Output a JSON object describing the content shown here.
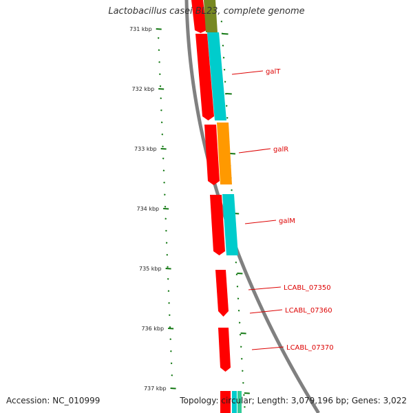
{
  "title": "Lactobacillus casei BL23, complete genome",
  "footer": {
    "accession": "Accession: NC_010999",
    "summary": "Topology: circular; Length: 3,079,196 bp; Genes: 3,022"
  },
  "colors": {
    "backbone": "#808080",
    "tick": "#117711",
    "cds_red": "#ff0000",
    "cds_cyan": "#00cccc",
    "cds_orange": "#ff9900",
    "cds_olive": "#778822",
    "label_red": "#dd0000"
  },
  "ticks": [
    {
      "label": "731 kbp"
    },
    {
      "label": "732 kbp"
    },
    {
      "label": "733 kbp"
    },
    {
      "label": "734 kbp"
    },
    {
      "label": "735 kbp"
    },
    {
      "label": "736 kbp"
    },
    {
      "label": "737 kbp"
    }
  ],
  "gene_labels": [
    {
      "text": "galT"
    },
    {
      "text": "galR"
    },
    {
      "text": "galM"
    },
    {
      "text": "LCABL_07350"
    },
    {
      "text": "LCABL_07360"
    },
    {
      "text": "LCABL_07370"
    }
  ]
}
